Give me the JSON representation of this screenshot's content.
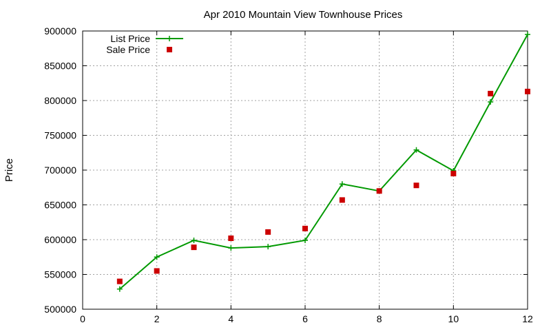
{
  "chart_data": {
    "type": "line",
    "title": "Apr 2010 Mountain View Townhouse Prices",
    "xlabel": "",
    "ylabel": "Price",
    "xlim": [
      0,
      12
    ],
    "ylim": [
      500000,
      900000
    ],
    "xticks": [
      0,
      2,
      4,
      6,
      8,
      10,
      12
    ],
    "yticks": [
      500000,
      550000,
      600000,
      650000,
      700000,
      750000,
      800000,
      850000,
      900000
    ],
    "grid": true,
    "legend_position": "top-left",
    "series": [
      {
        "name": "List Price",
        "style": "line+cross",
        "color": "#009900",
        "x": [
          1,
          2,
          3,
          4,
          5,
          6,
          7,
          8,
          9,
          10,
          11,
          12
        ],
        "values": [
          529000,
          575000,
          599000,
          588000,
          590000,
          599000,
          680000,
          670000,
          729000,
          699000,
          798000,
          895000
        ]
      },
      {
        "name": "Sale Price",
        "style": "square-points",
        "color": "#cc0000",
        "x": [
          1,
          2,
          3,
          4,
          5,
          6,
          7,
          8,
          9,
          10,
          11,
          12
        ],
        "values": [
          540000,
          555000,
          589000,
          602000,
          611000,
          616000,
          657000,
          670000,
          678000,
          695000,
          810000,
          813000
        ]
      }
    ]
  }
}
